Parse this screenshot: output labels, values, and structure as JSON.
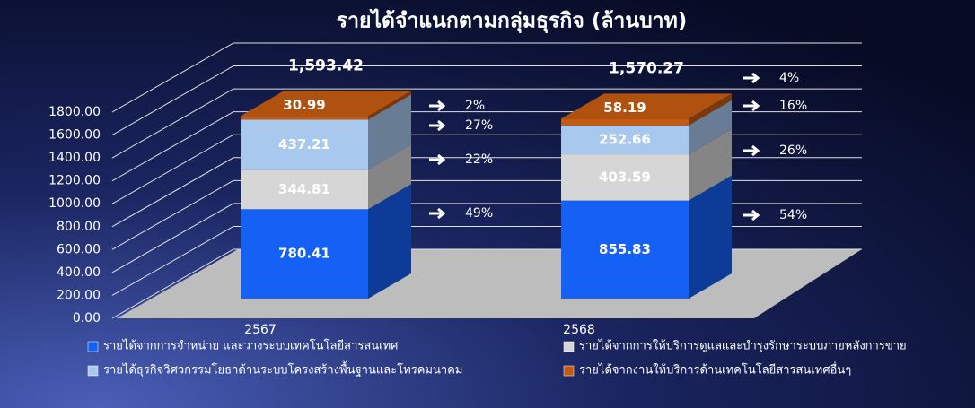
{
  "chart_data": {
    "type": "bar",
    "stacked": true,
    "title": "รายได้จำแนกตามกลุ่มธุรกิจ (ล้านบาท)",
    "categories": [
      "2567",
      "2568"
    ],
    "series": [
      {
        "name": "รายได้จากการจำหน่าย และวางระบบเทคโนโลยีสารสนเทศ",
        "color": "#1560f5",
        "values": [
          780.41,
          855.83
        ],
        "shares": [
          49,
          54
        ],
        "share_labels": [
          "49%",
          "54%"
        ]
      },
      {
        "name": "รายได้จากการให้บริการดูแลและบำรุงรักษาระบบภายหลังการขาย",
        "color": "#d6d6d6",
        "values": [
          344.81,
          403.59
        ],
        "shares": [
          22,
          26
        ],
        "share_labels": [
          "22%",
          "26%"
        ]
      },
      {
        "name": "รายได้ธุรกิจวิศวกรรมโยธาด้านระบบโครงสร้างพื้นฐานและโทรคมนาคม",
        "color": "#a8c8ee",
        "values": [
          437.21,
          252.66
        ],
        "shares": [
          27,
          16
        ],
        "share_labels": [
          "27%",
          "16%"
        ]
      },
      {
        "name": "รายได้จากงานให้บริการด้านเทคโนโลยีสารสนเทศอื่นๆ",
        "color": "#c55a11",
        "values": [
          30.99,
          58.19
        ],
        "shares": [
          2,
          4
        ],
        "share_labels": [
          "2%",
          "4%"
        ]
      }
    ],
    "totals": {
      "values": [
        1593.42,
        1570.27
      ],
      "value_labels": [
        "1,593.42",
        "1,570.27"
      ]
    },
    "ylim": [
      0,
      1800
    ],
    "yticks": [
      {
        "value": 0,
        "label": "0.00"
      },
      {
        "value": 200,
        "label": "200.00"
      },
      {
        "value": 400,
        "label": "400.00"
      },
      {
        "value": 600,
        "label": "600.00"
      },
      {
        "value": 800,
        "label": "800.00"
      },
      {
        "value": 1000,
        "label": "1000.00"
      },
      {
        "value": 1200,
        "label": "1200.00"
      },
      {
        "value": 1400,
        "label": "1400.00"
      },
      {
        "value": 1600,
        "label": "1600.00"
      },
      {
        "value": 1800,
        "label": "1800.00"
      }
    ],
    "grid": true
  }
}
